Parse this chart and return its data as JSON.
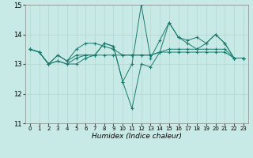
{
  "xlabel": "Humidex (Indice chaleur)",
  "xlim": [
    -0.5,
    23.5
  ],
  "ylim": [
    11,
    15
  ],
  "yticks": [
    11,
    12,
    13,
    14,
    15
  ],
  "xticks": [
    0,
    1,
    2,
    3,
    4,
    5,
    6,
    7,
    8,
    9,
    10,
    11,
    12,
    13,
    14,
    15,
    16,
    17,
    18,
    19,
    20,
    21,
    22,
    23
  ],
  "bg_color": "#c8eae6",
  "grid_color": "#b8d8d4",
  "line_color": "#1a7a6e",
  "series": [
    [
      13.5,
      13.4,
      13.0,
      13.3,
      13.1,
      13.3,
      13.3,
      13.3,
      13.7,
      13.6,
      12.4,
      13.0,
      15.0,
      13.2,
      13.8,
      14.4,
      13.9,
      13.8,
      13.9,
      13.7,
      14.0,
      13.7,
      13.2,
      13.2
    ],
    [
      13.5,
      13.4,
      13.0,
      13.3,
      13.1,
      13.5,
      13.7,
      13.7,
      13.6,
      13.5,
      13.3,
      13.3,
      13.3,
      13.3,
      13.4,
      13.5,
      13.5,
      13.5,
      13.5,
      13.5,
      13.5,
      13.5,
      13.2,
      13.2
    ],
    [
      13.5,
      13.4,
      13.0,
      13.1,
      13.0,
      13.2,
      13.3,
      13.3,
      13.3,
      13.3,
      13.3,
      13.3,
      13.3,
      13.3,
      13.4,
      13.4,
      13.4,
      13.4,
      13.4,
      13.4,
      13.4,
      13.4,
      13.2,
      13.2
    ],
    [
      13.5,
      13.4,
      13.0,
      13.1,
      13.0,
      13.0,
      13.2,
      13.3,
      13.7,
      13.6,
      12.4,
      11.5,
      13.0,
      12.9,
      13.4,
      14.4,
      13.9,
      13.7,
      13.5,
      13.7,
      14.0,
      13.7,
      13.2,
      13.2
    ]
  ]
}
